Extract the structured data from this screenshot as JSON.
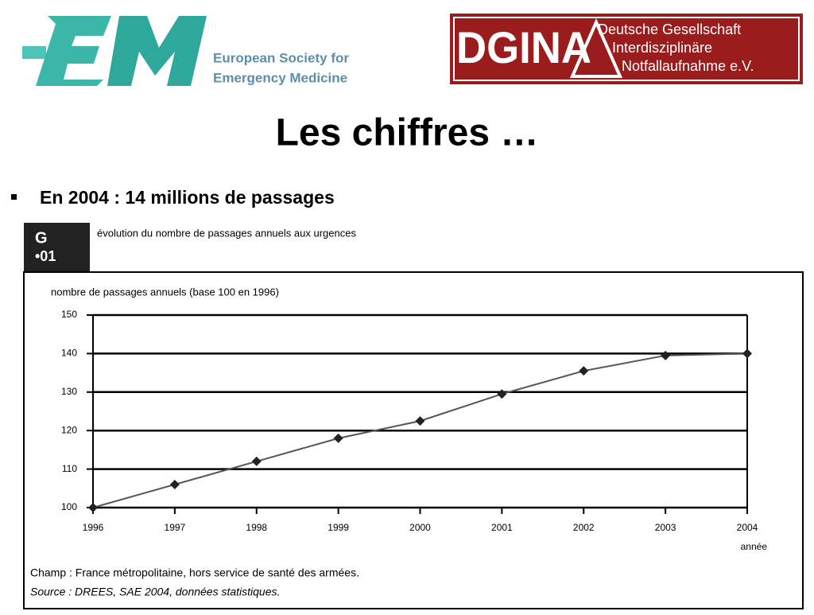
{
  "logos": {
    "esem": [
      "European Society for",
      "Emergency Medicine"
    ],
    "dgina": {
      "name": "DGINA",
      "lines": [
        "Deutsche Gesellschaft",
        "Interdisziplinäre",
        "Notfallaufnahme e.V."
      ]
    }
  },
  "slide": {
    "title": "Les chiffres …",
    "bullet": "En 2004 : 14 millions de passages"
  },
  "figure": {
    "label": [
      "G",
      "•01"
    ],
    "caption": "évolution du nombre de passages annuels aux urgences",
    "notes": [
      "Champ : France métropolitaine, hors service de santé des armées.",
      "Source : DREES, SAE 2004, données statistiques."
    ]
  },
  "chart_data": {
    "type": "line",
    "subtitle": "nombre de passages annuels (base 100 en 1996)",
    "x_label": "année",
    "categories": [
      "1996",
      "1997",
      "1998",
      "1999",
      "2000",
      "2001",
      "2002",
      "2003",
      "2004"
    ],
    "values": [
      100,
      106,
      112,
      118,
      122.5,
      129.5,
      135.5,
      139.5,
      140
    ],
    "color": "#555555",
    "ylim": [
      100,
      150
    ],
    "yticks": [
      100,
      110,
      120,
      130,
      140,
      150
    ],
    "grid": true
  }
}
